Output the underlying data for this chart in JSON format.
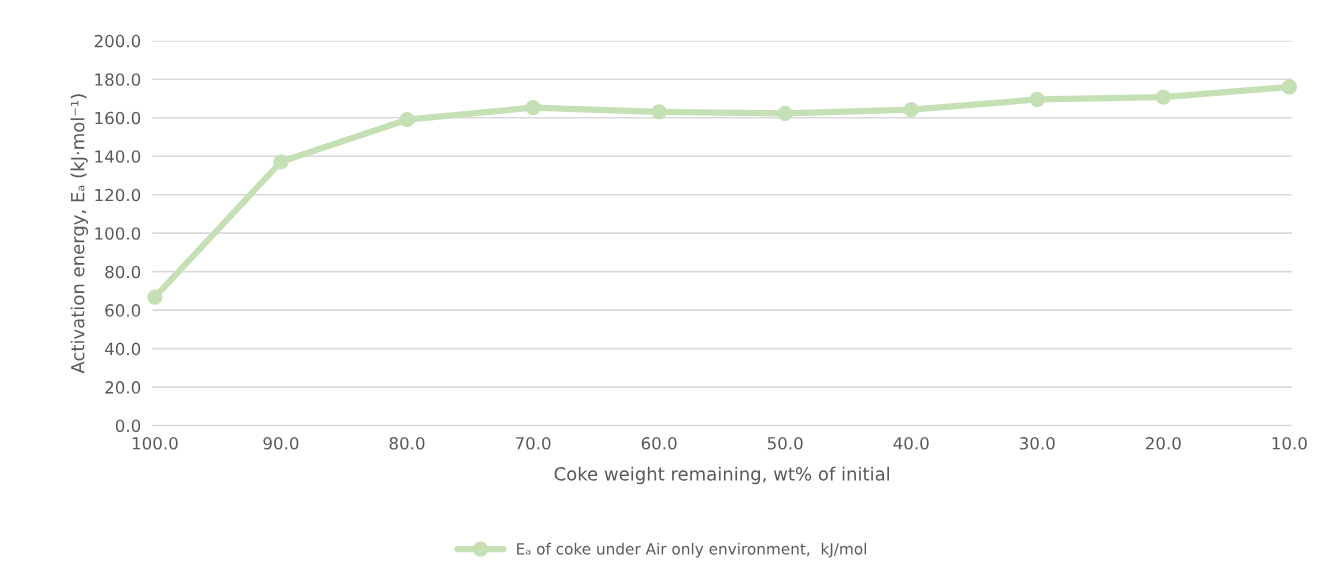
{
  "chart_data": {
    "type": "line",
    "xlabel": "Coke weight remaining, wt% of initial",
    "ylabel": "Activation energy, Eₐ (kJ·mol⁻¹)",
    "categories": [
      "100.0",
      "90.0",
      "80.0",
      "70.0",
      "60.0",
      "50.0",
      "40.0",
      "30.0",
      "20.0",
      "10.0"
    ],
    "series": [
      {
        "name": "Eₐ of coke under Air only environment,  kJ/mol",
        "color": "#c5e0b4",
        "values": [
          66.8,
          137.1,
          159.0,
          165.3,
          163.1,
          162.3,
          164.2,
          169.5,
          170.7,
          176.0
        ]
      }
    ],
    "ylim": [
      0,
      200
    ],
    "yticks": [
      {
        "value": 0,
        "label": "0.0"
      },
      {
        "value": 20,
        "label": "20.0"
      },
      {
        "value": 40,
        "label": "40.0"
      },
      {
        "value": 60,
        "label": "60.0"
      },
      {
        "value": 80,
        "label": "80.0"
      },
      {
        "value": 100,
        "label": "100.0"
      },
      {
        "value": 120,
        "label": "120.0"
      },
      {
        "value": 140,
        "label": "140.0"
      },
      {
        "value": 160,
        "label": "160.0"
      },
      {
        "value": 180,
        "label": "180.0"
      },
      {
        "value": 200,
        "label": "200.0"
      }
    ],
    "grid": "y",
    "legend": "bottom",
    "marker": "circle",
    "line_style": "solid"
  }
}
